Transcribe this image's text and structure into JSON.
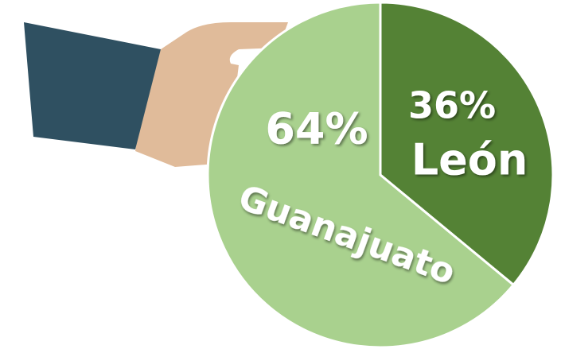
{
  "chart_data": {
    "type": "pie",
    "categories": [
      "León",
      "Guanajuato"
    ],
    "values": [
      36,
      64
    ],
    "value_labels": [
      "36%",
      "64%"
    ],
    "colors": [
      "#548235",
      "#a9d18e"
    ]
  }
}
